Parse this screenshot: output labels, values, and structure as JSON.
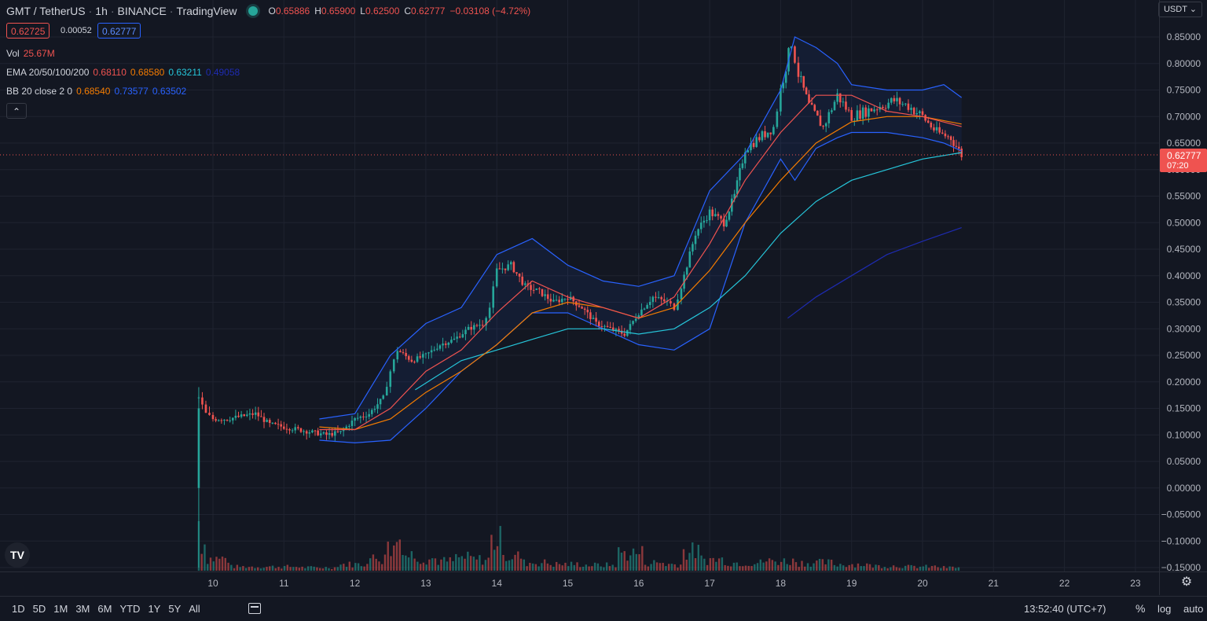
{
  "header": {
    "symbol": "GMT / TetherUS",
    "interval": "1h",
    "exchange": "BINANCE",
    "source": "TradingView",
    "ohlc": {
      "o_label": "O",
      "o": "0.65886",
      "h_label": "H",
      "h": "0.65900",
      "l_label": "L",
      "l": "0.62500",
      "c_label": "C",
      "c": "0.62777",
      "change": "−0.03108 (−4.72%)"
    }
  },
  "quote": {
    "bid": "0.62725",
    "spread": "0.00052",
    "ask": "0.62777"
  },
  "indicators": {
    "vol": {
      "label": "Vol",
      "value": "25.67M"
    },
    "ema": {
      "label": "EMA 20/50/100/200",
      "v20": "0.68110",
      "v50": "0.68580",
      "v100": "0.63211",
      "v200": "0.49058"
    },
    "bb": {
      "label": "BB 20 close 2 0",
      "basis": "0.68540",
      "upper": "0.73577",
      "lower": "0.63502"
    }
  },
  "currency_button": "USDT",
  "collapse_icon": "chevron-up-icon",
  "current_price": {
    "value": "0.62777",
    "countdown": "07:20"
  },
  "bottom": {
    "ranges": [
      "1D",
      "5D",
      "1M",
      "3M",
      "6M",
      "YTD",
      "1Y",
      "5Y",
      "All"
    ],
    "time": "13:52:40 (UTC+7)",
    "percent": "%",
    "log": "log",
    "auto": "auto"
  },
  "colors": {
    "up": "#26a69a",
    "down": "#ef5350",
    "bb": "#2962ff",
    "ema20": "#ef5350",
    "ema50": "#f57c00",
    "ema100": "#26c6da",
    "ema200": "#1e2bb0"
  },
  "chart_data": {
    "type": "line",
    "ylim": [
      -0.155,
      0.86
    ],
    "y_ticks": [
      "0.85000",
      "0.80000",
      "0.75000",
      "0.70000",
      "0.65000",
      "0.60000",
      "0.55000",
      "0.50000",
      "0.45000",
      "0.40000",
      "0.35000",
      "0.30000",
      "0.25000",
      "0.20000",
      "0.15000",
      "0.10000",
      "0.05000",
      "0.00000",
      "−0.05000",
      "−0.10000",
      "−0.15000"
    ],
    "x_ticks": [
      "10",
      "11",
      "12",
      "13",
      "14",
      "15",
      "16",
      "17",
      "18",
      "19",
      "20",
      "21",
      "22",
      "23"
    ],
    "series": [
      {
        "key": "close",
        "x": [
          9.8,
          9.9,
          10.0,
          10.2,
          10.4,
          10.6,
          10.8,
          11.0,
          11.2,
          11.4,
          11.6,
          11.8,
          12.0,
          12.2,
          12.4,
          12.5,
          12.6,
          12.8,
          13.0,
          13.2,
          13.4,
          13.6,
          13.8,
          13.9,
          14.0,
          14.2,
          14.4,
          14.6,
          14.8,
          15.0,
          15.2,
          15.4,
          15.6,
          15.8,
          16.0,
          16.2,
          16.4,
          16.5,
          16.6,
          16.8,
          17.0,
          17.2,
          17.35,
          17.5,
          17.7,
          17.9,
          18.0,
          18.15,
          18.25,
          18.4,
          18.6,
          18.8,
          19.0,
          19.2,
          19.4,
          19.6,
          19.8,
          20.0,
          20.2,
          20.4,
          20.55
        ],
        "y": [
          0.17,
          0.14,
          0.13,
          0.13,
          0.135,
          0.14,
          0.12,
          0.115,
          0.11,
          0.105,
          0.1,
          0.105,
          0.13,
          0.14,
          0.17,
          0.22,
          0.26,
          0.24,
          0.25,
          0.27,
          0.28,
          0.3,
          0.31,
          0.34,
          0.41,
          0.42,
          0.38,
          0.37,
          0.35,
          0.36,
          0.34,
          0.31,
          0.3,
          0.29,
          0.33,
          0.36,
          0.35,
          0.34,
          0.38,
          0.48,
          0.52,
          0.5,
          0.55,
          0.64,
          0.66,
          0.68,
          0.75,
          0.84,
          0.78,
          0.72,
          0.68,
          0.74,
          0.7,
          0.71,
          0.72,
          0.73,
          0.72,
          0.7,
          0.67,
          0.66,
          0.62777
        ]
      },
      {
        "key": "ema20",
        "x": [
          11.5,
          12.0,
          12.5,
          13.0,
          13.5,
          14.0,
          14.5,
          15.0,
          15.5,
          16.0,
          16.5,
          17.0,
          17.5,
          18.0,
          18.5,
          19.0,
          19.5,
          20.0,
          20.55
        ],
        "y": [
          0.11,
          0.11,
          0.15,
          0.22,
          0.26,
          0.33,
          0.39,
          0.36,
          0.34,
          0.32,
          0.36,
          0.46,
          0.58,
          0.67,
          0.74,
          0.74,
          0.71,
          0.7,
          0.681
        ]
      },
      {
        "key": "ema50",
        "x": [
          11.5,
          12.0,
          12.5,
          13.0,
          13.5,
          14.0,
          14.5,
          15.0,
          15.5,
          16.0,
          16.5,
          17.0,
          17.5,
          18.0,
          18.5,
          19.0,
          19.5,
          20.0,
          20.55
        ],
        "y": [
          0.115,
          0.11,
          0.13,
          0.18,
          0.22,
          0.27,
          0.33,
          0.35,
          0.34,
          0.32,
          0.34,
          0.41,
          0.5,
          0.58,
          0.65,
          0.69,
          0.7,
          0.7,
          0.6858
        ]
      },
      {
        "key": "ema100",
        "x": [
          12.85,
          13.5,
          14.0,
          14.5,
          15.0,
          15.5,
          16.0,
          16.5,
          17.0,
          17.5,
          18.0,
          18.5,
          19.0,
          19.5,
          20.0,
          20.55
        ],
        "y": [
          0.185,
          0.24,
          0.26,
          0.28,
          0.3,
          0.3,
          0.29,
          0.3,
          0.34,
          0.4,
          0.48,
          0.54,
          0.58,
          0.6,
          0.62,
          0.6321
        ]
      },
      {
        "key": "ema200",
        "x": [
          18.1,
          18.5,
          19.0,
          19.5,
          20.0,
          20.55
        ],
        "y": [
          0.32,
          0.36,
          0.4,
          0.44,
          0.465,
          0.4906
        ]
      },
      {
        "key": "bb_upper",
        "x": [
          11.5,
          12.0,
          12.5,
          13.0,
          13.5,
          14.0,
          14.5,
          15.0,
          15.5,
          16.0,
          16.5,
          17.0,
          17.5,
          18.0,
          18.2,
          18.5,
          18.8,
          19.0,
          19.5,
          20.0,
          20.3,
          20.55
        ],
        "y": [
          0.13,
          0.14,
          0.25,
          0.31,
          0.34,
          0.44,
          0.47,
          0.42,
          0.39,
          0.38,
          0.4,
          0.56,
          0.63,
          0.75,
          0.85,
          0.83,
          0.8,
          0.76,
          0.75,
          0.75,
          0.76,
          0.7358
        ]
      },
      {
        "key": "bb_lower",
        "x": [
          11.5,
          12.0,
          12.5,
          13.0,
          13.5,
          14.0,
          14.5,
          15.0,
          15.5,
          16.0,
          16.5,
          17.0,
          17.5,
          18.0,
          18.2,
          18.5,
          18.8,
          19.0,
          19.5,
          20.0,
          20.3,
          20.55
        ],
        "y": [
          0.09,
          0.085,
          0.09,
          0.15,
          0.22,
          0.27,
          0.33,
          0.33,
          0.3,
          0.27,
          0.26,
          0.3,
          0.5,
          0.62,
          0.58,
          0.64,
          0.66,
          0.67,
          0.67,
          0.66,
          0.65,
          0.635
        ]
      }
    ],
    "volume": {
      "x": [
        9.8,
        10.0,
        10.5,
        11.0,
        11.5,
        12.0,
        12.3,
        12.5,
        12.6,
        12.8,
        13.0,
        13.3,
        13.5,
        13.8,
        14.0,
        14.2,
        14.5,
        15.0,
        15.5,
        15.9,
        16.2,
        16.5,
        16.7,
        17.0,
        17.5,
        18.0,
        18.5,
        19.0,
        19.5,
        20.0,
        20.5
      ],
      "pct": [
        0.35,
        0.15,
        0.05,
        0.05,
        0.04,
        0.08,
        0.15,
        0.28,
        0.4,
        0.2,
        0.15,
        0.12,
        0.16,
        0.14,
        0.38,
        0.18,
        0.1,
        0.08,
        0.07,
        0.22,
        0.1,
        0.08,
        0.24,
        0.14,
        0.1,
        0.12,
        0.1,
        0.08,
        0.06,
        0.05,
        0.04
      ]
    }
  }
}
